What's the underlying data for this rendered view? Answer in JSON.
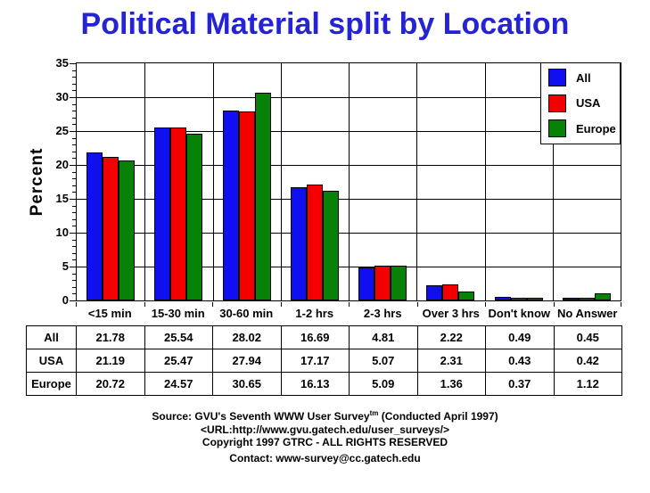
{
  "title": "Political Material split by Location",
  "title_color": "#2424d4",
  "chart_data": {
    "type": "bar",
    "title": "Political Material split by Location",
    "xlabel": "",
    "ylabel": "Percent",
    "ylim": [
      0,
      35
    ],
    "ytick_step": 5,
    "yminor_step": 1,
    "grid": true,
    "legend_position": "top-right",
    "categories": [
      "<15 min",
      "15-30 min",
      "30-60 min",
      "1-2 hrs",
      "2-3 hrs",
      "Over 3 hrs",
      "Don't know",
      "No Answer"
    ],
    "series": [
      {
        "name": "All",
        "color": "#0f0ff0",
        "values": [
          21.78,
          25.54,
          28.02,
          16.69,
          4.81,
          2.22,
          0.49,
          0.45
        ]
      },
      {
        "name": "USA",
        "color": "#f40000",
        "values": [
          21.19,
          25.47,
          27.94,
          17.17,
          5.07,
          2.31,
          0.43,
          0.42
        ]
      },
      {
        "name": "Europe",
        "color": "#078207",
        "values": [
          20.72,
          24.57,
          30.65,
          16.13,
          5.09,
          1.36,
          0.37,
          1.12
        ]
      }
    ]
  },
  "footer": {
    "line1_prefix": "Source: GVU's Seventh WWW User Survey",
    "line1_sup": "tm",
    "line1_suffix": " (Conducted April 1997)",
    "line2": "<URL:http://www.gvu.gatech.edu/user_surveys/>",
    "line3": "Copyright 1997 GTRC - ALL RIGHTS RESERVED",
    "line4": "Contact: www-survey@cc.gatech.edu"
  }
}
